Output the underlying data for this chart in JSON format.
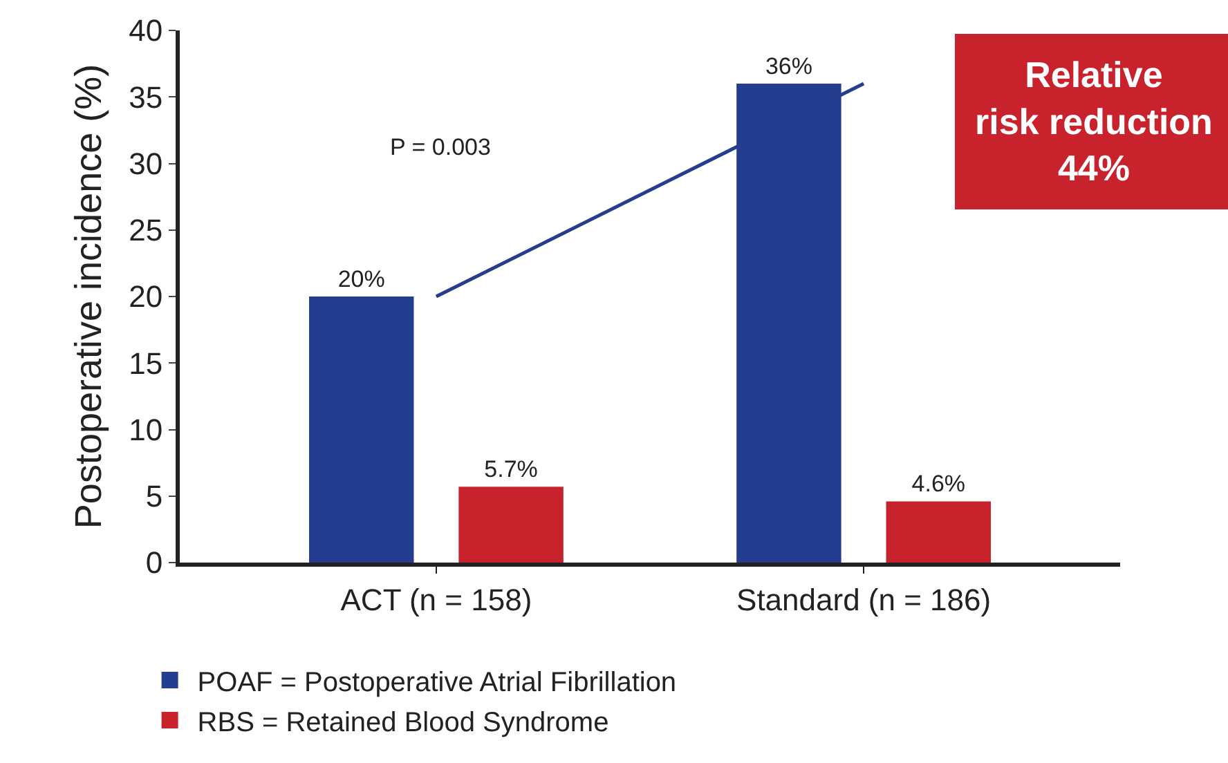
{
  "chart_data": {
    "type": "bar",
    "ylabel": "Postoperative incidence (%)",
    "categories": [
      "ACT (n = 158)",
      "Standard (n = 186)"
    ],
    "series": [
      {
        "name": "POAF = Postoperative Atrial Fibrillation",
        "color": "#253d8e",
        "values": [
          20,
          36
        ],
        "value_labels": [
          "20%",
          "36%"
        ]
      },
      {
        "name": "RBS = Retained Blood Syndrome",
        "color": "#c8222c",
        "values": [
          5.7,
          4.6
        ],
        "value_labels": [
          "5.7%",
          "4.6%"
        ]
      },
      {
        "type": "line",
        "color": "#253d8e",
        "values": [
          20,
          36
        ]
      }
    ],
    "annotations": [
      "P = 0.003",
      "Relative\nrisk reduction\n44%"
    ],
    "ylim": [
      0,
      40
    ],
    "yticks": [
      0,
      5,
      10,
      15,
      20,
      25,
      30,
      35,
      40
    ],
    "grid": false,
    "legend": "bottom left"
  }
}
